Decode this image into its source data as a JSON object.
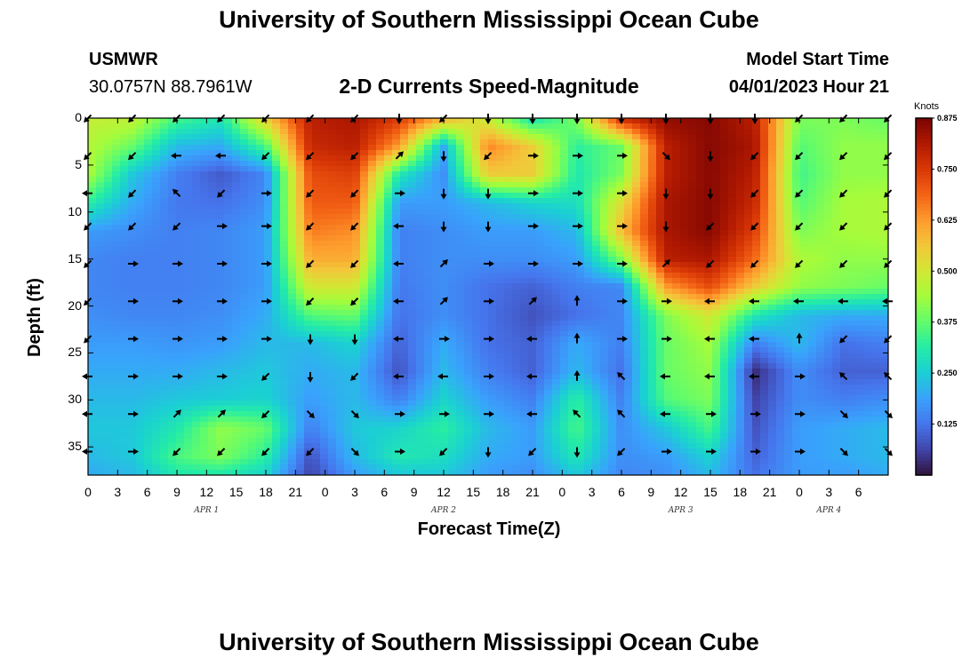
{
  "header": {
    "title": "University of Southern Mississippi Ocean Cube",
    "station": "USMWR",
    "coords": "30.0757N  88.7961W",
    "subtitle": "2-D Currents Speed-Magnitude",
    "model_label": "Model Start Time",
    "model_time": "04/01/2023 Hour 21"
  },
  "footer": {
    "title": "University of Southern Mississippi Ocean Cube"
  },
  "colors": {
    "scale": [
      "#30123b",
      "#4145ab",
      "#4675ed",
      "#39a2fc",
      "#1bcfd4",
      "#24eca6",
      "#61fc6c",
      "#a4fc3b",
      "#d1e834",
      "#f3c63a",
      "#fe9b2d",
      "#f36315",
      "#d93806",
      "#b11901",
      "#7a0402"
    ]
  },
  "chart_data": {
    "type": "heatmap",
    "title": "2-D Currents Speed-Magnitude",
    "xlabel": "Forecast Time(Z)",
    "ylabel": "Depth (ft)",
    "x_hours_range": [
      0,
      81
    ],
    "ylim": [
      0,
      38
    ],
    "x_tick_labels": [
      "0",
      "3",
      "6",
      "9",
      "12",
      "15",
      "18",
      "21",
      "0",
      "3",
      "6",
      "9",
      "12",
      "15",
      "18",
      "21",
      "0",
      "3",
      "6",
      "9",
      "12",
      "15",
      "18",
      "21",
      "0",
      "3",
      "6"
    ],
    "y_ticks": [
      0,
      5,
      10,
      15,
      20,
      25,
      30,
      35
    ],
    "date_labels": [
      {
        "label": "APR 1",
        "hour": 12
      },
      {
        "label": "APR 2",
        "hour": 36
      },
      {
        "label": "APR 3",
        "hour": 60
      },
      {
        "label": "APR 4",
        "hour": 75
      }
    ],
    "colorbar": {
      "label": "Knots",
      "range": [
        0.0,
        0.875
      ],
      "ticks": [
        "0.875",
        "0.750",
        "0.625",
        "0.500",
        "0.375",
        "0.250",
        "0.125"
      ],
      "tick_values": [
        0.875,
        0.75,
        0.625,
        0.5,
        0.375,
        0.25,
        0.125
      ]
    },
    "speed_grid_hours": [
      0,
      4.5,
      9,
      13.5,
      18,
      22.5,
      27,
      31.5,
      36,
      40.5,
      45,
      49.5,
      54,
      58.5,
      63,
      67.5,
      72,
      76.5,
      81
    ],
    "speed_grid_depths": [
      0,
      3,
      6,
      9,
      12,
      15,
      18,
      21,
      24,
      27,
      30,
      33,
      36,
      38
    ],
    "speed_grid": [
      [
        0.48,
        0.48,
        0.35,
        0.3,
        0.55,
        0.8,
        0.82,
        0.75,
        0.6,
        0.48,
        0.28,
        0.4,
        0.78,
        0.85,
        0.86,
        0.8,
        0.4,
        0.4,
        0.38
      ],
      [
        0.46,
        0.38,
        0.22,
        0.2,
        0.35,
        0.78,
        0.8,
        0.62,
        0.2,
        0.65,
        0.55,
        0.32,
        0.38,
        0.8,
        0.86,
        0.82,
        0.36,
        0.42,
        0.42
      ],
      [
        0.45,
        0.24,
        0.14,
        0.09,
        0.15,
        0.72,
        0.74,
        0.3,
        0.16,
        0.55,
        0.55,
        0.3,
        0.4,
        0.8,
        0.86,
        0.8,
        0.34,
        0.42,
        0.42
      ],
      [
        0.32,
        0.2,
        0.13,
        0.12,
        0.16,
        0.7,
        0.7,
        0.18,
        0.18,
        0.22,
        0.26,
        0.28,
        0.52,
        0.82,
        0.86,
        0.78,
        0.36,
        0.44,
        0.45
      ],
      [
        0.18,
        0.16,
        0.14,
        0.15,
        0.18,
        0.66,
        0.64,
        0.14,
        0.16,
        0.18,
        0.18,
        0.22,
        0.58,
        0.82,
        0.86,
        0.74,
        0.4,
        0.44,
        0.45
      ],
      [
        0.15,
        0.14,
        0.14,
        0.15,
        0.18,
        0.6,
        0.6,
        0.14,
        0.16,
        0.16,
        0.16,
        0.18,
        0.4,
        0.8,
        0.82,
        0.68,
        0.45,
        0.42,
        0.42
      ],
      [
        0.15,
        0.14,
        0.14,
        0.15,
        0.18,
        0.5,
        0.5,
        0.13,
        0.16,
        0.12,
        0.1,
        0.14,
        0.15,
        0.62,
        0.72,
        0.55,
        0.42,
        0.4,
        0.38
      ],
      [
        0.16,
        0.15,
        0.15,
        0.16,
        0.2,
        0.36,
        0.38,
        0.12,
        0.16,
        0.12,
        0.08,
        0.12,
        0.15,
        0.4,
        0.5,
        0.3,
        0.22,
        0.2,
        0.2
      ],
      [
        0.18,
        0.18,
        0.17,
        0.18,
        0.22,
        0.22,
        0.26,
        0.1,
        0.2,
        0.12,
        0.1,
        0.2,
        0.14,
        0.38,
        0.44,
        0.14,
        0.22,
        0.12,
        0.14
      ],
      [
        0.2,
        0.2,
        0.2,
        0.22,
        0.24,
        0.2,
        0.22,
        0.08,
        0.22,
        0.14,
        0.1,
        0.22,
        0.12,
        0.38,
        0.42,
        0.03,
        0.16,
        0.1,
        0.1
      ],
      [
        0.22,
        0.22,
        0.24,
        0.25,
        0.26,
        0.18,
        0.22,
        0.14,
        0.26,
        0.18,
        0.14,
        0.32,
        0.14,
        0.36,
        0.4,
        0.06,
        0.16,
        0.14,
        0.16
      ],
      [
        0.24,
        0.24,
        0.3,
        0.42,
        0.38,
        0.14,
        0.24,
        0.26,
        0.32,
        0.22,
        0.18,
        0.35,
        0.16,
        0.24,
        0.35,
        0.08,
        0.18,
        0.2,
        0.22
      ],
      [
        0.22,
        0.24,
        0.35,
        0.4,
        0.32,
        0.08,
        0.22,
        0.3,
        0.28,
        0.2,
        0.18,
        0.3,
        0.16,
        0.18,
        0.26,
        0.1,
        0.18,
        0.2,
        0.22
      ],
      [
        0.2,
        0.22,
        0.3,
        0.3,
        0.26,
        0.06,
        0.18,
        0.24,
        0.24,
        0.18,
        0.16,
        0.24,
        0.15,
        0.16,
        0.22,
        0.12,
        0.18,
        0.18,
        0.2
      ]
    ],
    "vector_hours": [
      0,
      4.5,
      9,
      13.5,
      18,
      22.5,
      27,
      31.5,
      36,
      40.5,
      45,
      49.5,
      54,
      58.5,
      63,
      67.5,
      72,
      76.5,
      81
    ],
    "vector_depths": [
      0,
      4,
      8,
      11.5,
      15.5,
      19.5,
      23.5,
      27.5,
      31.5,
      35.5
    ],
    "vector_dirs_deg": [
      [
        135,
        135,
        135,
        135,
        135,
        135,
        135,
        90,
        135,
        90,
        90,
        90,
        90,
        90,
        90,
        90,
        135,
        135,
        135
      ],
      [
        135,
        135,
        180,
        180,
        135,
        135,
        135,
        315,
        90,
        135,
        0,
        0,
        0,
        45,
        90,
        135,
        135,
        135,
        135
      ],
      [
        180,
        135,
        225,
        135,
        0,
        135,
        135,
        0,
        90,
        90,
        0,
        0,
        0,
        90,
        90,
        135,
        135,
        135,
        135
      ],
      [
        135,
        135,
        135,
        0,
        0,
        135,
        135,
        180,
        90,
        90,
        0,
        0,
        0,
        90,
        135,
        135,
        135,
        135,
        135
      ],
      [
        135,
        0,
        0,
        0,
        0,
        135,
        135,
        180,
        315,
        0,
        0,
        0,
        0,
        315,
        135,
        135,
        135,
        135,
        135
      ],
      [
        135,
        0,
        0,
        0,
        0,
        135,
        135,
        180,
        315,
        0,
        315,
        270,
        0,
        0,
        180,
        180,
        180,
        180,
        180
      ],
      [
        135,
        0,
        0,
        0,
        0,
        90,
        90,
        180,
        0,
        0,
        180,
        270,
        0,
        0,
        180,
        180,
        270,
        135,
        135
      ],
      [
        180,
        0,
        0,
        0,
        135,
        90,
        135,
        180,
        180,
        0,
        180,
        270,
        225,
        180,
        180,
        180,
        0,
        225,
        225
      ],
      [
        180,
        0,
        315,
        315,
        135,
        45,
        45,
        0,
        0,
        0,
        180,
        225,
        225,
        180,
        0,
        0,
        0,
        45,
        45
      ],
      [
        180,
        0,
        135,
        135,
        135,
        135,
        45,
        0,
        135,
        90,
        135,
        90,
        135,
        0,
        0,
        0,
        0,
        45,
        45
      ]
    ]
  }
}
